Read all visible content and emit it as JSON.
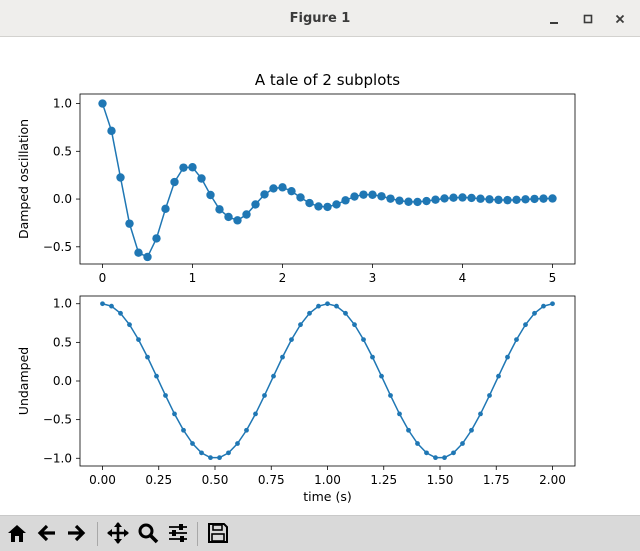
{
  "window": {
    "title": "Figure 1"
  },
  "toolbar": {
    "buttons": [
      {
        "name": "home-button",
        "icon": "home-icon"
      },
      {
        "name": "back-button",
        "icon": "arrow-left-icon"
      },
      {
        "name": "forward-button",
        "icon": "arrow-right-icon"
      },
      {
        "name": "pan-button",
        "icon": "move-icon"
      },
      {
        "name": "zoom-button",
        "icon": "magnifier-icon"
      },
      {
        "name": "configure-subplots-button",
        "icon": "sliders-icon"
      },
      {
        "name": "save-button",
        "icon": "floppy-disk-icon"
      }
    ]
  },
  "colors": {
    "series": "#1f77b4"
  },
  "chart_data": [
    {
      "type": "line",
      "title": "A tale of 2 subplots",
      "xlabel": "",
      "ylabel": "Damped oscillation",
      "xlim": [
        -0.25,
        5.25
      ],
      "ylim": [
        -0.68,
        1.1
      ],
      "xticks": [
        0,
        1,
        2,
        3,
        4,
        5
      ],
      "xtick_labels": [
        "0",
        "1",
        "2",
        "3",
        "4",
        "5"
      ],
      "yticks": [
        1.0,
        0.5,
        0.0,
        -0.5
      ],
      "ytick_labels": [
        "1.0",
        "0.5",
        "0.0",
        "−0.5"
      ],
      "marker": "o",
      "x": [
        0.0,
        0.1,
        0.2,
        0.3,
        0.4,
        0.5,
        0.6,
        0.7,
        0.8,
        0.9,
        1.0,
        1.1,
        1.2,
        1.3,
        1.4,
        1.5,
        1.6,
        1.7,
        1.8,
        1.9,
        2.0,
        2.1,
        2.2,
        2.3,
        2.4,
        2.5,
        2.6,
        2.7,
        2.8,
        2.9,
        3.0,
        3.1,
        3.2,
        3.3,
        3.4,
        3.5,
        3.6,
        3.7,
        3.8,
        3.9,
        4.0,
        4.1,
        4.2,
        4.3,
        4.4,
        4.5,
        4.6,
        4.7,
        4.8,
        4.9,
        5.0
      ],
      "y": [
        1.0,
        0.7141,
        0.2258,
        -0.2575,
        -0.5618,
        -0.6065,
        -0.412,
        -0.1023,
        0.1783,
        0.3288,
        0.3329,
        0.2153,
        0.0425,
        -0.1081,
        -0.1872,
        -0.2231,
        -0.1616,
        -0.0563,
        0.0481,
        0.111,
        0.1225,
        0.0827,
        0.0168,
        -0.0422,
        -0.077,
        -0.0821,
        -0.0566,
        -0.0135,
        0.0262,
        0.0462,
        0.0451,
        0.0291,
        0.0043,
        -0.0168,
        -0.0283,
        -0.0302,
        -0.021,
        -0.0068,
        0.0062,
        0.0143,
        0.0166,
        0.0119,
        0.0035,
        -0.0032,
        -0.0085,
        -0.0111,
        -0.0081,
        -0.003,
        0.0016,
        0.0046,
        0.0061
      ]
    },
    {
      "type": "line",
      "title": "",
      "xlabel": "time (s)",
      "ylabel": "Undamped",
      "xlim": [
        -0.1,
        2.1
      ],
      "ylim": [
        -1.1,
        1.1
      ],
      "xticks": [
        0.0,
        0.25,
        0.5,
        0.75,
        1.0,
        1.25,
        1.5,
        1.75,
        2.0
      ],
      "xtick_labels": [
        "0.00",
        "0.25",
        "0.50",
        "0.75",
        "1.00",
        "1.25",
        "1.50",
        "1.75",
        "2.00"
      ],
      "yticks": [
        1.0,
        0.5,
        0.0,
        -0.5,
        -1.0
      ],
      "ytick_labels": [
        "1.0",
        "0.5",
        "0.0",
        "−0.5",
        "−1.0"
      ],
      "marker": ".",
      "x": [
        0.0,
        0.04,
        0.08,
        0.12,
        0.16,
        0.2,
        0.24,
        0.28,
        0.32,
        0.36,
        0.4,
        0.44,
        0.48,
        0.52,
        0.56,
        0.6,
        0.64,
        0.68,
        0.72,
        0.76,
        0.8,
        0.84,
        0.88,
        0.92,
        0.96,
        1.0,
        1.04,
        1.08,
        1.12,
        1.16,
        1.2,
        1.24,
        1.28,
        1.32,
        1.36,
        1.4,
        1.44,
        1.48,
        1.52,
        1.56,
        1.6,
        1.64,
        1.68,
        1.72,
        1.76,
        1.8,
        1.84,
        1.88,
        1.92,
        1.96,
        2.0
      ],
      "y": [
        1.0,
        0.9686,
        0.8763,
        0.729,
        0.5358,
        0.309,
        0.0628,
        -0.1874,
        -0.4258,
        -0.6374,
        -0.809,
        -0.9298,
        -0.9921,
        -0.9921,
        -0.9298,
        -0.809,
        -0.6374,
        -0.4258,
        -0.1874,
        0.0628,
        0.309,
        0.5358,
        0.729,
        0.8763,
        0.9686,
        1.0,
        0.9686,
        0.8763,
        0.729,
        0.5358,
        0.309,
        0.0628,
        -0.1874,
        -0.4258,
        -0.6374,
        -0.809,
        -0.9298,
        -0.9921,
        -0.9921,
        -0.9298,
        -0.809,
        -0.6374,
        -0.4258,
        -0.1874,
        0.0628,
        0.309,
        0.5358,
        0.729,
        0.8763,
        0.9686,
        1.0
      ]
    }
  ]
}
